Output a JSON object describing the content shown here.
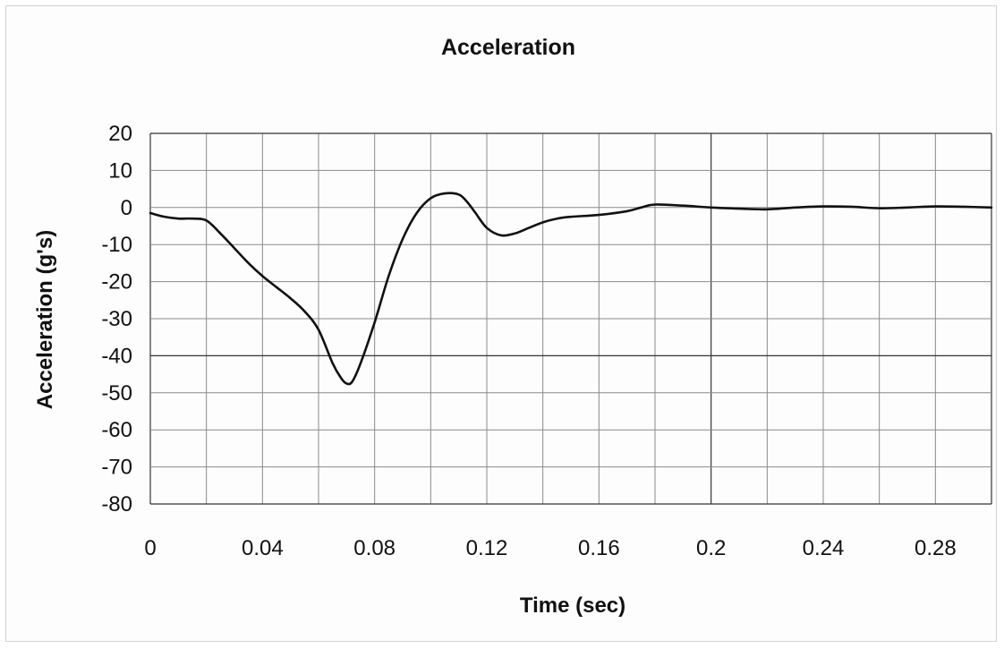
{
  "chart_data": {
    "type": "line",
    "title": "Acceleration",
    "xlabel": "Time (sec)",
    "ylabel": "Acceleration (g's)",
    "xlim": [
      0,
      0.3
    ],
    "ylim": [
      -80,
      20
    ],
    "x_ticks": [
      0,
      0.04,
      0.08,
      0.12,
      0.16,
      0.2,
      0.24,
      0.28
    ],
    "x_tick_labels": [
      "0",
      "0.04",
      "0.08",
      "0.12",
      "0.16",
      "0.2",
      "0.24",
      "0.28"
    ],
    "y_ticks": [
      20,
      10,
      0,
      -10,
      -20,
      -30,
      -40,
      -50,
      -60,
      -70,
      -80
    ],
    "y_tick_labels": [
      "20",
      "10",
      "0",
      "-10",
      "-20",
      "-30",
      "-40",
      "-50",
      "-60",
      "-70",
      "-80"
    ],
    "grid": true,
    "legend": "none",
    "series": [
      {
        "x": [
          0,
          0.005,
          0.01,
          0.015,
          0.02,
          0.025,
          0.03,
          0.035,
          0.04,
          0.045,
          0.05,
          0.055,
          0.06,
          0.065,
          0.068,
          0.07,
          0.072,
          0.075,
          0.08,
          0.085,
          0.09,
          0.095,
          0.1,
          0.105,
          0.11,
          0.113,
          0.116,
          0.12,
          0.125,
          0.13,
          0.135,
          0.14,
          0.145,
          0.15,
          0.16,
          0.17,
          0.175,
          0.18,
          0.19,
          0.2,
          0.21,
          0.22,
          0.23,
          0.24,
          0.25,
          0.26,
          0.27,
          0.28,
          0.29,
          0.3
        ],
        "y": [
          -1.5,
          -2.5,
          -3,
          -3,
          -3.5,
          -7,
          -11,
          -15,
          -18.5,
          -21.5,
          -24.5,
          -28,
          -33,
          -42,
          -46,
          -47.5,
          -47,
          -42,
          -31,
          -18.5,
          -8.5,
          -1.5,
          2.5,
          3.8,
          3.5,
          1.5,
          -1.5,
          -5.5,
          -7.5,
          -7,
          -5.5,
          -4,
          -3,
          -2.5,
          -2,
          -1,
          0,
          0.8,
          0.5,
          0,
          -0.3,
          -0.5,
          0,
          0.3,
          0.2,
          -0.2,
          0,
          0.3,
          0.2,
          0
        ]
      }
    ]
  }
}
